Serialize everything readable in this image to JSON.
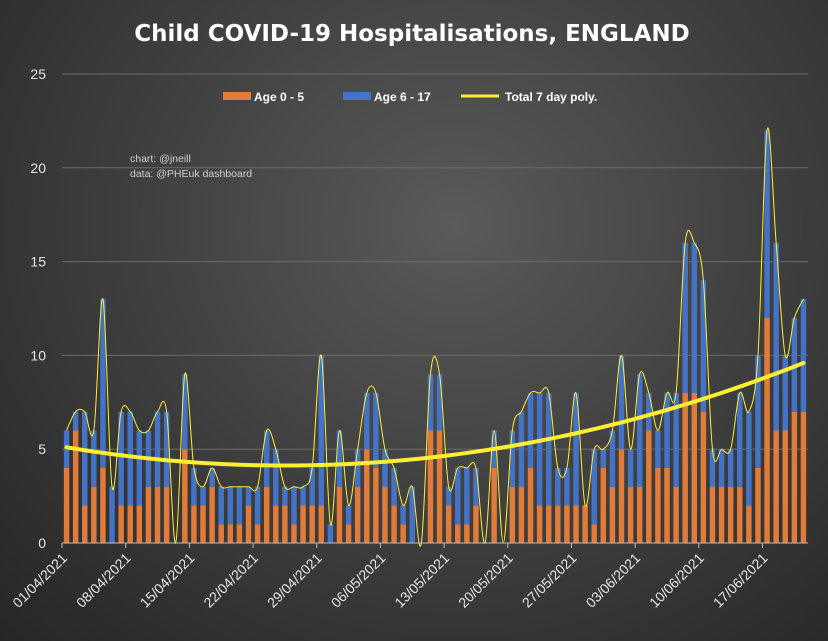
{
  "chart_data": {
    "type": "bar",
    "title": "Child COVID-19 Hospitalisations, ENGLAND",
    "credits": [
      "chart: @jneill",
      "data: @PHEuk dashboard"
    ],
    "stacked": true,
    "ylim": [
      0,
      25
    ],
    "yticks": [
      0,
      5,
      10,
      15,
      20,
      25
    ],
    "grid": true,
    "legend_position": "top",
    "x_tick_labels": [
      "01/04/2021",
      "08/04/2021",
      "15/04/2021",
      "22/04/2021",
      "29/04/2021",
      "06/05/2021",
      "13/05/2021",
      "20/05/2021",
      "27/05/2021",
      "03/06/2021",
      "10/06/2021",
      "17/06/2021"
    ],
    "categories": [
      "01/04/2021",
      "02/04/2021",
      "03/04/2021",
      "04/04/2021",
      "05/04/2021",
      "06/04/2021",
      "07/04/2021",
      "08/04/2021",
      "09/04/2021",
      "10/04/2021",
      "11/04/2021",
      "12/04/2021",
      "13/04/2021",
      "14/04/2021",
      "15/04/2021",
      "16/04/2021",
      "17/04/2021",
      "18/04/2021",
      "19/04/2021",
      "20/04/2021",
      "21/04/2021",
      "22/04/2021",
      "23/04/2021",
      "24/04/2021",
      "25/04/2021",
      "26/04/2021",
      "27/04/2021",
      "28/04/2021",
      "29/04/2021",
      "30/04/2021",
      "01/05/2021",
      "02/05/2021",
      "03/05/2021",
      "04/05/2021",
      "05/05/2021",
      "06/05/2021",
      "07/05/2021",
      "08/05/2021",
      "09/05/2021",
      "10/05/2021",
      "11/05/2021",
      "12/05/2021",
      "13/05/2021",
      "14/05/2021",
      "15/05/2021",
      "16/05/2021",
      "17/05/2021",
      "18/05/2021",
      "19/05/2021",
      "20/05/2021",
      "21/05/2021",
      "22/05/2021",
      "23/05/2021",
      "24/05/2021",
      "25/05/2021",
      "26/05/2021",
      "27/05/2021",
      "28/05/2021",
      "29/05/2021",
      "30/05/2021",
      "31/05/2021",
      "01/06/2021",
      "02/06/2021",
      "03/06/2021",
      "04/06/2021",
      "05/06/2021",
      "06/06/2021",
      "07/06/2021",
      "08/06/2021",
      "09/06/2021",
      "10/06/2021",
      "11/06/2021",
      "12/06/2021",
      "13/06/2021",
      "14/06/2021",
      "15/06/2021",
      "16/06/2021",
      "17/06/2021",
      "18/06/2021",
      "19/06/2021",
      "20/06/2021",
      "21/06/2021"
    ],
    "series": [
      {
        "name": "Age 0 - 5",
        "color": "#e07b39",
        "values": [
          4,
          6,
          2,
          3,
          4,
          0,
          2,
          2,
          2,
          3,
          3,
          3,
          0,
          5,
          2,
          2,
          3,
          1,
          1,
          1,
          2,
          1,
          3,
          2,
          2,
          1,
          2,
          2,
          2,
          0,
          3,
          1,
          3,
          5,
          4,
          3,
          2,
          1,
          0,
          0,
          6,
          6,
          2,
          1,
          1,
          2,
          0,
          4,
          0,
          3,
          3,
          4,
          2,
          2,
          2,
          2,
          2,
          2,
          1,
          4,
          3,
          5,
          3,
          3,
          6,
          4,
          4,
          3,
          8,
          8,
          7,
          3,
          3,
          3,
          3,
          2,
          4,
          12,
          6,
          6,
          7,
          7
        ]
      },
      {
        "name": "Age 6 - 17",
        "color": "#4472c4",
        "values": [
          2,
          1,
          5,
          3,
          9,
          3,
          5,
          5,
          4,
          3,
          4,
          4,
          0,
          4,
          2,
          1,
          1,
          2,
          2,
          2,
          1,
          2,
          3,
          3,
          1,
          2,
          1,
          2,
          8,
          1,
          3,
          1,
          2,
          3,
          4,
          2,
          2,
          1,
          3,
          0,
          3,
          3,
          1,
          3,
          3,
          2,
          0,
          2,
          0,
          3,
          4,
          4,
          6,
          6,
          2,
          2,
          6,
          0,
          4,
          1,
          3,
          5,
          2,
          6,
          2,
          2,
          4,
          5,
          8,
          8,
          7,
          2,
          2,
          2,
          5,
          5,
          6,
          10,
          10,
          4,
          5,
          6
        ]
      },
      {
        "name": "Total 7 day poly.",
        "color": "#ffee33"
      }
    ],
    "trend_poly": [
      0.0016836,
      -0.0809,
      5.1
    ],
    "xlabel": "",
    "ylabel": ""
  }
}
